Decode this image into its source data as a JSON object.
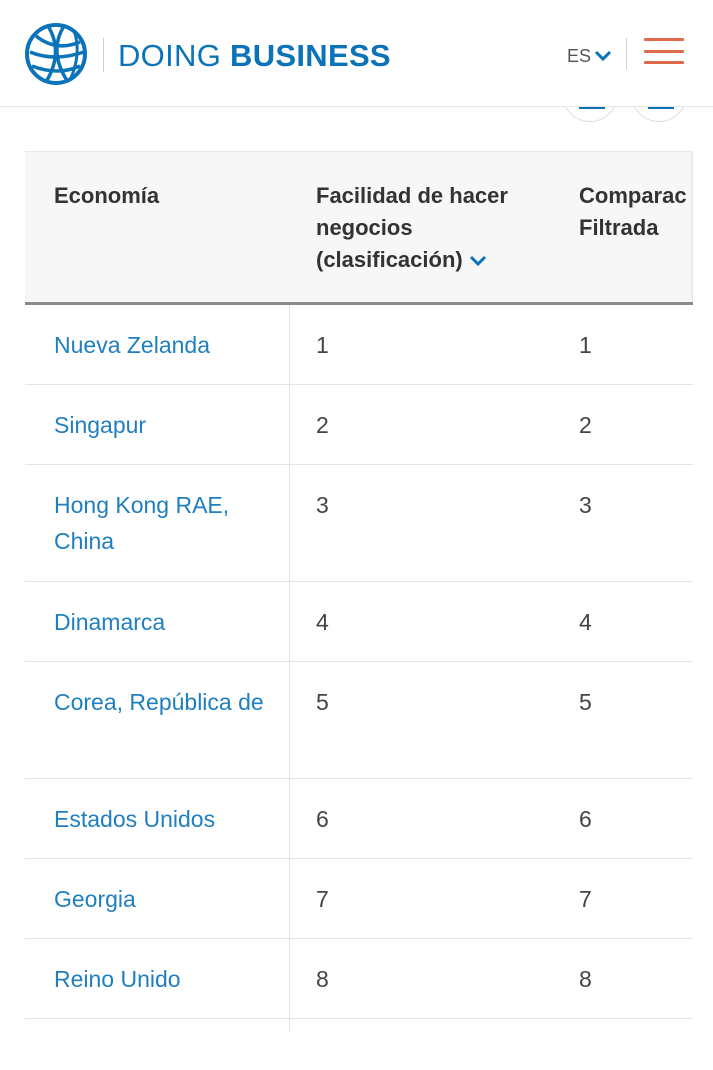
{
  "header": {
    "brand_light": "DOING ",
    "brand_bold": "BUSINESS",
    "language": "ES",
    "icons": {
      "logo": "world-bank-globe-icon",
      "language": "chevron-down-icon",
      "menu": "hamburger-menu-icon"
    },
    "colors": {
      "brand": "#0b73b8",
      "menu": "#e06a4c"
    }
  },
  "table": {
    "headers": {
      "economy": "Economía",
      "ease_rank": "Facilidad de hacer negocios (clasificación)",
      "filtered": "Comparac Filtrada"
    },
    "rows": [
      {
        "economy": "Nueva Zelanda",
        "rank": "1",
        "filtered": "1"
      },
      {
        "economy": "Singapur",
        "rank": "2",
        "filtered": "2"
      },
      {
        "economy": "Hong Kong RAE, China",
        "rank": "3",
        "filtered": "3"
      },
      {
        "economy": "Dinamarca",
        "rank": "4",
        "filtered": "4"
      },
      {
        "economy": "Corea, República de",
        "rank": "5",
        "filtered": "5"
      },
      {
        "economy": "Estados Unidos",
        "rank": "6",
        "filtered": "6"
      },
      {
        "economy": "Georgia",
        "rank": "7",
        "filtered": "7"
      },
      {
        "economy": "Reino Unido",
        "rank": "8",
        "filtered": "8"
      }
    ]
  }
}
